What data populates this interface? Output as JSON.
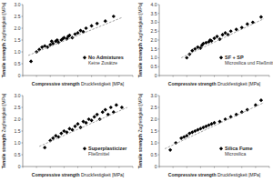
{
  "chart_data": [
    {
      "type": "scatter",
      "xlabel": [
        "Compressive strength",
        "Druckfestigkeit [MPa]"
      ],
      "ylabel": [
        "Tensile strength",
        "Zugfestigkeit [MPa]"
      ],
      "xlim": [
        0,
        40
      ],
      "xticks": [
        0,
        5,
        10,
        15,
        20,
        25,
        30,
        35,
        40
      ],
      "ylim": [
        0,
        3
      ],
      "yticks": [
        0,
        0.5,
        {
          "value": 1,
          "label": "1.0"
        },
        1.5,
        {
          "value": 2,
          "label": "2.0"
        },
        2.5,
        {
          "value": 3,
          "label": "3.0"
        }
      ],
      "tick_labels": "y",
      "grid": false,
      "legend": "lower right",
      "annotations": [
        "Keine Zusätze"
      ],
      "series": [
        {
          "name": "No Admixtures",
          "type": "scatter",
          "marker": "diamond",
          "color": "#000000",
          "x": [
            3,
            5,
            6,
            7,
            8,
            9,
            10,
            10.5,
            11,
            12,
            12.5,
            13,
            14,
            14.5,
            15,
            16,
            16.5,
            17,
            18,
            19,
            20,
            21,
            22,
            23,
            25,
            27,
            30,
            33
          ],
          "values": [
            0.6,
            1.0,
            1.1,
            1.2,
            1.25,
            1.2,
            1.3,
            1.45,
            1.35,
            1.45,
            1.5,
            1.4,
            1.5,
            1.55,
            1.6,
            1.55,
            1.65,
            1.7,
            1.6,
            1.75,
            1.8,
            1.9,
            1.85,
            2.0,
            2.1,
            2.2,
            2.3,
            2.5
          ]
        },
        {
          "type": "line",
          "line_style": "dashed",
          "color": "#8c8c8c",
          "x": [
            2,
            36
          ],
          "values": [
            0.85,
            2.45
          ]
        }
      ]
    },
    {
      "type": "scatter",
      "xlabel": [
        "Compressive strength",
        "Druckfestigkeit [MPa]"
      ],
      "ylabel": [
        "Tensile strength",
        "Zugfestigkeit [MPa]"
      ],
      "xlim": [
        0,
        40
      ],
      "xticks": [
        0,
        5,
        10,
        15,
        20,
        25,
        30,
        35,
        40
      ],
      "ylim": [
        0,
        4
      ],
      "yticks": [
        0,
        0.5,
        {
          "value": 1,
          "label": "1.0"
        },
        1.5,
        {
          "value": 2,
          "label": "2.0"
        },
        2.5,
        {
          "value": 3,
          "label": "3.0"
        },
        3.5,
        {
          "value": 4,
          "label": "4.0"
        }
      ],
      "tick_labels": "y",
      "grid": false,
      "legend": "lower right",
      "annotations": [
        "Microsilica und Fließmittel"
      ],
      "series": [
        {
          "name": "SF + SP",
          "type": "scatter",
          "marker": "diamond",
          "color": "#000000",
          "x": [
            10,
            11,
            12,
            13,
            14,
            15,
            15.5,
            16,
            17,
            18,
            18.5,
            19,
            20,
            21,
            22,
            23,
            24,
            25,
            26,
            28,
            30,
            32,
            34,
            37
          ],
          "values": [
            1.0,
            1.2,
            1.4,
            1.5,
            1.6,
            1.55,
            1.7,
            1.8,
            1.85,
            1.9,
            2.0,
            1.95,
            2.1,
            2.2,
            2.05,
            2.3,
            2.4,
            2.3,
            2.5,
            2.6,
            2.7,
            2.9,
            3.0,
            3.3
          ]
        },
        {
          "type": "line",
          "line_style": "dashed",
          "color": "#8c8c8c",
          "x": [
            8,
            38
          ],
          "values": [
            1.0,
            3.2
          ]
        }
      ]
    },
    {
      "type": "scatter",
      "xlabel": [
        "Compressive strength",
        "Druckfestigkeit [MPa]"
      ],
      "ylabel": [
        "Tensile strength",
        "Zugfestigkeit [MPa]"
      ],
      "xlim": [
        0,
        40
      ],
      "xticks": [
        0,
        5,
        10,
        15,
        20,
        25,
        30,
        35,
        40
      ],
      "ylim": [
        0,
        3
      ],
      "yticks": [
        0,
        0.5,
        {
          "value": 1,
          "label": "1.0"
        },
        1.5,
        {
          "value": 2,
          "label": "2.0"
        },
        2.5,
        {
          "value": 3,
          "label": "3.0"
        }
      ],
      "tick_labels": "y",
      "grid": false,
      "legend": "lower right",
      "annotations": [
        "Fließmittel"
      ],
      "series": [
        {
          "name": "Superplasticizer",
          "type": "scatter",
          "marker": "diamond",
          "color": "#000000",
          "x": [
            8,
            10,
            11,
            12,
            13,
            14,
            15,
            16,
            17,
            18,
            19,
            20,
            21,
            22,
            23,
            24,
            25,
            26,
            27,
            28,
            29,
            30,
            31,
            32,
            33,
            34,
            36
          ],
          "values": [
            0.8,
            1.1,
            1.2,
            1.3,
            1.25,
            1.4,
            1.5,
            1.45,
            1.6,
            1.55,
            1.7,
            1.8,
            1.65,
            1.9,
            1.85,
            2.0,
            1.95,
            2.1,
            2.2,
            2.0,
            2.3,
            2.4,
            2.2,
            2.5,
            2.3,
            2.6,
            2.5
          ]
        },
        {
          "type": "line",
          "line_style": "dashed",
          "color": "#8c8c8c",
          "x": [
            6,
            38
          ],
          "values": [
            0.85,
            2.5
          ]
        }
      ]
    },
    {
      "type": "scatter",
      "xlabel": [
        "Compressive strength",
        "Druckfestigkeit [MPa]"
      ],
      "ylabel": [
        "Tensile strength",
        "Zugfestigkeit [MPa]"
      ],
      "xlim": [
        0,
        40
      ],
      "xticks": [
        0,
        5,
        10,
        15,
        20,
        25,
        30,
        35,
        40
      ],
      "ylim": [
        0,
        3
      ],
      "yticks": [
        0,
        0.5,
        {
          "value": 1,
          "label": "1.0"
        },
        1.5,
        {
          "value": 2,
          "label": "2.0"
        },
        2.5,
        {
          "value": 3,
          "label": "3.0"
        }
      ],
      "tick_labels": "y",
      "grid": false,
      "legend": "lower right",
      "annotations": [
        "Microsilica"
      ],
      "series": [
        {
          "name": "Silica Fume",
          "type": "scatter",
          "marker": "diamond",
          "color": "#000000",
          "x": [
            4,
            6,
            8,
            9,
            10,
            11,
            12,
            13,
            14,
            15,
            16,
            17,
            18,
            19,
            20,
            22,
            24,
            26,
            28,
            30,
            32,
            35,
            37
          ],
          "values": [
            0.7,
            1.0,
            1.2,
            1.25,
            1.3,
            1.4,
            1.45,
            1.5,
            1.55,
            1.6,
            1.65,
            1.7,
            1.75,
            1.8,
            1.85,
            1.9,
            2.0,
            2.1,
            2.2,
            2.3,
            2.4,
            2.6,
            2.8
          ]
        },
        {
          "type": "line",
          "line_style": "dashed",
          "color": "#8c8c8c",
          "x": [
            2,
            38
          ],
          "values": [
            0.75,
            2.7
          ]
        }
      ]
    }
  ]
}
